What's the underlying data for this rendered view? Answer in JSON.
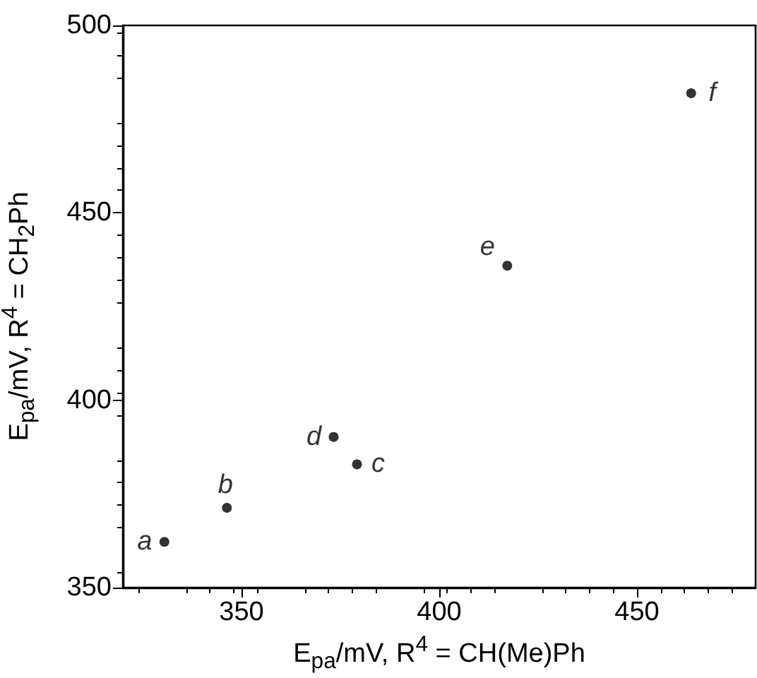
{
  "chart_data": {
    "type": "scatter",
    "xlabel": "E$_{pa}$/mV, R$^{4}$ = CH(Me)Ph",
    "ylabel": "E$_{pa}$/mV, R$^{4}$ = CH$_{2}$Ph",
    "x": [
      330.5,
      346.3,
      379.2,
      373.3,
      417.2,
      463.7
    ],
    "series": [
      {
        "color": "#000000",
        "values": [
          362.2,
          371.3,
          382.9,
          390.2,
          435.9,
          481.9
        ]
      }
    ],
    "annotations": [
      {
        "text": "a",
        "x": 330.5,
        "y": 362.2
      },
      {
        "text": "b",
        "x": 346.3,
        "y": 371.3
      },
      {
        "text": "c",
        "x": 379.2,
        "y": 382.9
      },
      {
        "text": "d",
        "x": 373.3,
        "y": 390.2
      },
      {
        "text": "e",
        "x": 417.2,
        "y": 435.9
      },
      {
        "text": "f",
        "x": 463.7,
        "y": 481.9
      }
    ],
    "xlim": [
      320,
      480
    ],
    "xticks": [
      350,
      400,
      450
    ],
    "ylim": [
      350,
      500
    ],
    "yticks": [
      350,
      400,
      450,
      500
    ],
    "marker": "circle",
    "grid": false
  }
}
